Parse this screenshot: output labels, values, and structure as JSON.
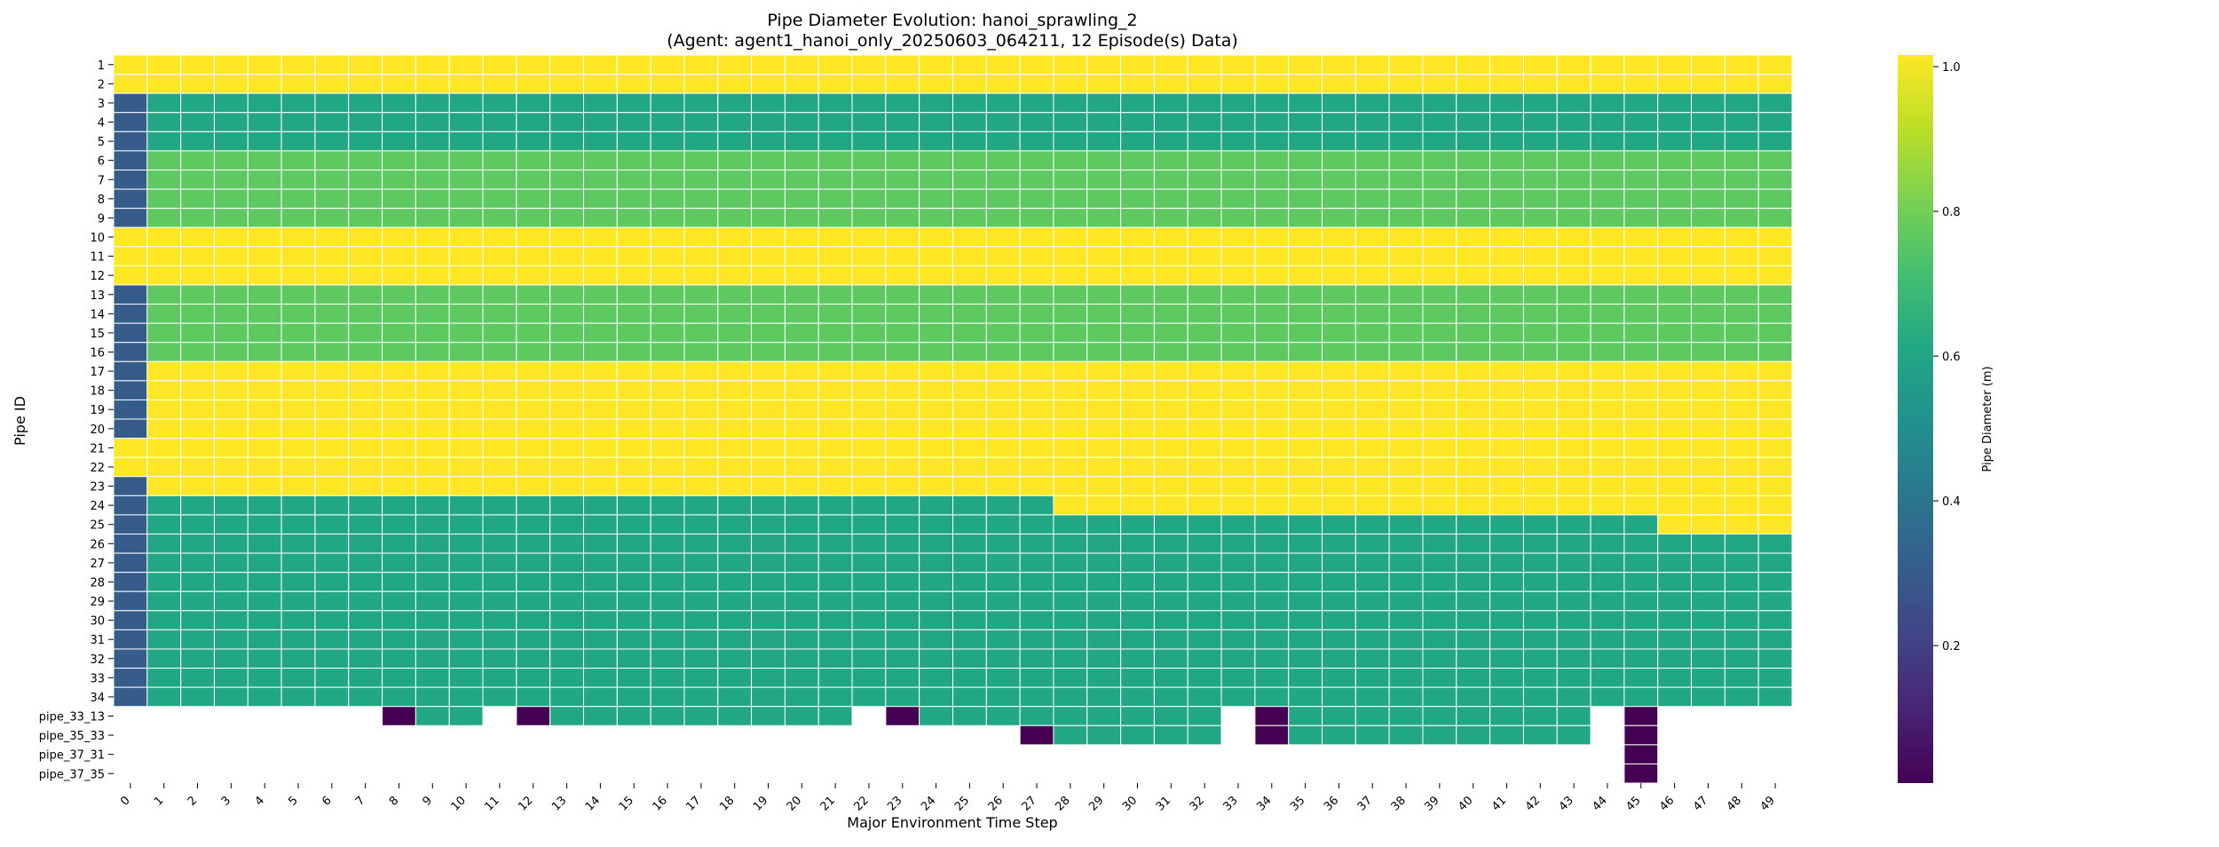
{
  "chart_data": {
    "type": "heatmap",
    "title": "Pipe Diameter Evolution: hanoi_sprawling_2",
    "subtitle": "(Agent: agent1_hanoi_only_20250603_064211, 12 Episode(s) Data)",
    "xlabel": "Major Environment Time Step",
    "ylabel": "Pipe ID",
    "colorbar_label": "Pipe Diameter (m)",
    "colormap": "viridis",
    "colorbar_ticks": [
      "0.2",
      "0.4",
      "0.6",
      "0.8",
      "1.0"
    ],
    "vmin": 0.01,
    "vmax": 1.016,
    "x_categories": [
      "0",
      "1",
      "2",
      "3",
      "4",
      "5",
      "6",
      "7",
      "8",
      "9",
      "10",
      "11",
      "12",
      "13",
      "14",
      "15",
      "16",
      "17",
      "18",
      "19",
      "20",
      "21",
      "22",
      "23",
      "24",
      "25",
      "26",
      "27",
      "28",
      "29",
      "30",
      "31",
      "32",
      "33",
      "34",
      "35",
      "36",
      "37",
      "38",
      "39",
      "40",
      "41",
      "42",
      "43",
      "44",
      "45",
      "46",
      "47",
      "48",
      "49"
    ],
    "y_categories": [
      "1",
      "2",
      "3",
      "4",
      "5",
      "6",
      "7",
      "8",
      "9",
      "10",
      "11",
      "12",
      "13",
      "14",
      "15",
      "16",
      "17",
      "18",
      "19",
      "20",
      "21",
      "22",
      "23",
      "24",
      "25",
      "26",
      "27",
      "28",
      "29",
      "30",
      "31",
      "32",
      "33",
      "34",
      "pipe_33_13",
      "pipe_35_33",
      "pipe_37_31",
      "pipe_37_35"
    ],
    "rows": [
      {
        "id": "1",
        "segments": [
          {
            "from": 0,
            "to": 49,
            "value": 1.016
          }
        ]
      },
      {
        "id": "2",
        "segments": [
          {
            "from": 0,
            "to": 49,
            "value": 1.016
          }
        ]
      },
      {
        "id": "3",
        "segments": [
          {
            "from": 0,
            "to": 0,
            "value": 0.3
          },
          {
            "from": 1,
            "to": 49,
            "value": 0.61
          }
        ]
      },
      {
        "id": "4",
        "segments": [
          {
            "from": 0,
            "to": 0,
            "value": 0.3
          },
          {
            "from": 1,
            "to": 49,
            "value": 0.61
          }
        ]
      },
      {
        "id": "5",
        "segments": [
          {
            "from": 0,
            "to": 0,
            "value": 0.3
          },
          {
            "from": 1,
            "to": 49,
            "value": 0.61
          }
        ]
      },
      {
        "id": "6",
        "segments": [
          {
            "from": 0,
            "to": 0,
            "value": 0.3
          },
          {
            "from": 1,
            "to": 49,
            "value": 0.762
          }
        ]
      },
      {
        "id": "7",
        "segments": [
          {
            "from": 0,
            "to": 0,
            "value": 0.3
          },
          {
            "from": 1,
            "to": 49,
            "value": 0.762
          }
        ]
      },
      {
        "id": "8",
        "segments": [
          {
            "from": 0,
            "to": 0,
            "value": 0.3
          },
          {
            "from": 1,
            "to": 49,
            "value": 0.762
          }
        ]
      },
      {
        "id": "9",
        "segments": [
          {
            "from": 0,
            "to": 0,
            "value": 0.3
          },
          {
            "from": 1,
            "to": 49,
            "value": 0.762
          }
        ]
      },
      {
        "id": "10",
        "segments": [
          {
            "from": 0,
            "to": 49,
            "value": 1.016
          }
        ]
      },
      {
        "id": "11",
        "segments": [
          {
            "from": 0,
            "to": 49,
            "value": 1.016
          }
        ]
      },
      {
        "id": "12",
        "segments": [
          {
            "from": 0,
            "to": 49,
            "value": 1.016
          }
        ]
      },
      {
        "id": "13",
        "segments": [
          {
            "from": 0,
            "to": 0,
            "value": 0.3
          },
          {
            "from": 1,
            "to": 49,
            "value": 0.762
          }
        ]
      },
      {
        "id": "14",
        "segments": [
          {
            "from": 0,
            "to": 0,
            "value": 0.3
          },
          {
            "from": 1,
            "to": 49,
            "value": 0.762
          }
        ]
      },
      {
        "id": "15",
        "segments": [
          {
            "from": 0,
            "to": 0,
            "value": 0.3
          },
          {
            "from": 1,
            "to": 49,
            "value": 0.762
          }
        ]
      },
      {
        "id": "16",
        "segments": [
          {
            "from": 0,
            "to": 0,
            "value": 0.3
          },
          {
            "from": 1,
            "to": 49,
            "value": 0.762
          }
        ]
      },
      {
        "id": "17",
        "segments": [
          {
            "from": 0,
            "to": 0,
            "value": 0.3
          },
          {
            "from": 1,
            "to": 49,
            "value": 1.016
          }
        ]
      },
      {
        "id": "18",
        "segments": [
          {
            "from": 0,
            "to": 0,
            "value": 0.3
          },
          {
            "from": 1,
            "to": 49,
            "value": 1.016
          }
        ]
      },
      {
        "id": "19",
        "segments": [
          {
            "from": 0,
            "to": 0,
            "value": 0.3
          },
          {
            "from": 1,
            "to": 49,
            "value": 1.016
          }
        ]
      },
      {
        "id": "20",
        "segments": [
          {
            "from": 0,
            "to": 0,
            "value": 0.3
          },
          {
            "from": 1,
            "to": 49,
            "value": 1.016
          }
        ]
      },
      {
        "id": "21",
        "segments": [
          {
            "from": 0,
            "to": 49,
            "value": 1.016
          }
        ]
      },
      {
        "id": "22",
        "segments": [
          {
            "from": 0,
            "to": 49,
            "value": 1.016
          }
        ]
      },
      {
        "id": "23",
        "segments": [
          {
            "from": 0,
            "to": 0,
            "value": 0.3
          },
          {
            "from": 1,
            "to": 49,
            "value": 1.016
          }
        ]
      },
      {
        "id": "24",
        "segments": [
          {
            "from": 0,
            "to": 0,
            "value": 0.3
          },
          {
            "from": 1,
            "to": 27,
            "value": 0.61
          },
          {
            "from": 28,
            "to": 49,
            "value": 1.016
          }
        ]
      },
      {
        "id": "25",
        "segments": [
          {
            "from": 0,
            "to": 0,
            "value": 0.3
          },
          {
            "from": 1,
            "to": 45,
            "value": 0.61
          },
          {
            "from": 46,
            "to": 49,
            "value": 1.016
          }
        ]
      },
      {
        "id": "26",
        "segments": [
          {
            "from": 0,
            "to": 0,
            "value": 0.3
          },
          {
            "from": 1,
            "to": 49,
            "value": 0.61
          }
        ]
      },
      {
        "id": "27",
        "segments": [
          {
            "from": 0,
            "to": 0,
            "value": 0.3
          },
          {
            "from": 1,
            "to": 49,
            "value": 0.61
          }
        ]
      },
      {
        "id": "28",
        "segments": [
          {
            "from": 0,
            "to": 0,
            "value": 0.3
          },
          {
            "from": 1,
            "to": 49,
            "value": 0.61
          }
        ]
      },
      {
        "id": "29",
        "segments": [
          {
            "from": 0,
            "to": 0,
            "value": 0.3
          },
          {
            "from": 1,
            "to": 49,
            "value": 0.61
          }
        ]
      },
      {
        "id": "30",
        "segments": [
          {
            "from": 0,
            "to": 0,
            "value": 0.3
          },
          {
            "from": 1,
            "to": 49,
            "value": 0.61
          }
        ]
      },
      {
        "id": "31",
        "segments": [
          {
            "from": 0,
            "to": 0,
            "value": 0.3
          },
          {
            "from": 1,
            "to": 49,
            "value": 0.61
          }
        ]
      },
      {
        "id": "32",
        "segments": [
          {
            "from": 0,
            "to": 0,
            "value": 0.3
          },
          {
            "from": 1,
            "to": 49,
            "value": 0.61
          }
        ]
      },
      {
        "id": "33",
        "segments": [
          {
            "from": 0,
            "to": 0,
            "value": 0.3
          },
          {
            "from": 1,
            "to": 49,
            "value": 0.61
          }
        ]
      },
      {
        "id": "34",
        "segments": [
          {
            "from": 0,
            "to": 0,
            "value": 0.3
          },
          {
            "from": 1,
            "to": 49,
            "value": 0.61
          }
        ]
      },
      {
        "id": "pipe_33_13",
        "segments": [
          {
            "from": 8,
            "to": 8,
            "value": 0.01
          },
          {
            "from": 9,
            "to": 10,
            "value": 0.61
          },
          {
            "from": 12,
            "to": 12,
            "value": 0.01
          },
          {
            "from": 13,
            "to": 21,
            "value": 0.61
          },
          {
            "from": 23,
            "to": 23,
            "value": 0.01
          },
          {
            "from": 24,
            "to": 32,
            "value": 0.61
          },
          {
            "from": 34,
            "to": 34,
            "value": 0.01
          },
          {
            "from": 35,
            "to": 43,
            "value": 0.61
          },
          {
            "from": 45,
            "to": 45,
            "value": 0.01
          }
        ]
      },
      {
        "id": "pipe_35_33",
        "segments": [
          {
            "from": 27,
            "to": 27,
            "value": 0.01
          },
          {
            "from": 28,
            "to": 32,
            "value": 0.61
          },
          {
            "from": 34,
            "to": 34,
            "value": 0.01
          },
          {
            "from": 35,
            "to": 43,
            "value": 0.61
          },
          {
            "from": 45,
            "to": 45,
            "value": 0.01
          }
        ]
      },
      {
        "id": "pipe_37_31",
        "segments": [
          {
            "from": 45,
            "to": 45,
            "value": 0.01
          }
        ]
      },
      {
        "id": "pipe_37_35",
        "segments": [
          {
            "from": 45,
            "to": 45,
            "value": 0.01
          }
        ]
      }
    ]
  }
}
